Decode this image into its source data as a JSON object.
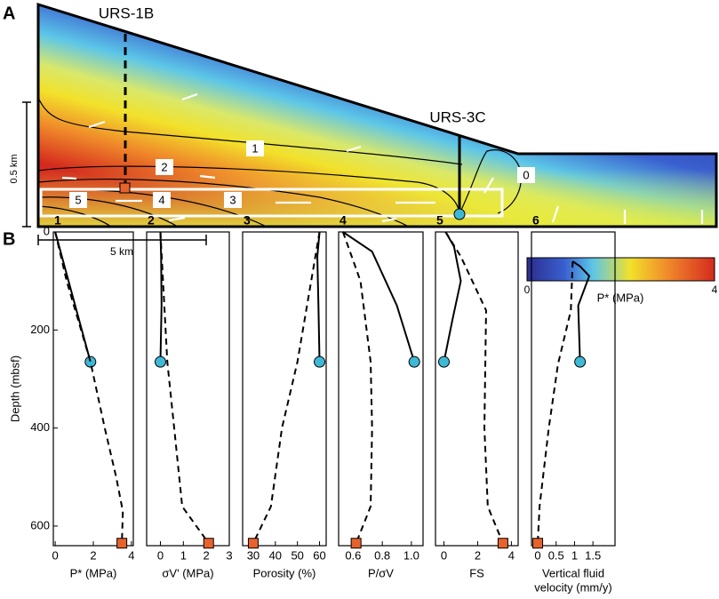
{
  "panel_a": {
    "label": "A",
    "wells": [
      "URS-1B",
      "URS-3C"
    ],
    "zones": [
      "0",
      "1",
      "2",
      "3",
      "4",
      "5"
    ],
    "vertical_scale": "0.5 km",
    "horizontal_scale": "5 km",
    "colorbar": {
      "ticks": [
        0,
        4
      ],
      "label": "P* (MPa)"
    }
  },
  "panel_b": {
    "label": "B"
  },
  "chart_data": [
    {
      "type": "line",
      "title": "1",
      "x_label": "P* (MPa)",
      "y_label": "Depth (mbsf)",
      "xlim": [
        -0.1,
        4.1
      ],
      "xticks": [
        0,
        2,
        4
      ],
      "ylim": [
        0,
        640
      ],
      "yticks": [
        0,
        200,
        400,
        600
      ],
      "series": [
        {
          "style": "solid",
          "color": "#000000",
          "depths": [
            0,
            265
          ],
          "values": [
            0,
            1.85
          ]
        },
        {
          "style": "dashed",
          "color": "#000000",
          "depths": [
            0,
            100,
            265,
            400,
            500,
            570,
            635
          ],
          "values": [
            0,
            0.6,
            1.85,
            2.6,
            3.2,
            3.55,
            3.5
          ]
        }
      ]
    },
    {
      "type": "line",
      "title": "2",
      "x_label": "σV' (MPa)",
      "xlim": [
        -0.6,
        3
      ],
      "xticks": [
        0,
        1,
        2,
        3
      ],
      "ylim": [
        0,
        640
      ],
      "series": [
        {
          "style": "solid",
          "color": "#000000",
          "depths": [
            0,
            50,
            150,
            265
          ],
          "values": [
            0,
            0.03,
            0.05,
            0
          ]
        },
        {
          "style": "dashed",
          "color": "#000000",
          "depths": [
            0,
            265,
            400,
            560,
            635
          ],
          "values": [
            0,
            0.3,
            0.6,
            0.95,
            2.1
          ]
        }
      ]
    },
    {
      "type": "line",
      "title": "3",
      "x_label": "Porosity (%)",
      "xlim": [
        25.2,
        63
      ],
      "xticks": [
        30,
        40,
        50,
        60
      ],
      "ylim": [
        0,
        640
      ],
      "series": [
        {
          "style": "solid",
          "color": "#000000",
          "depths": [
            0,
            50,
            150,
            265
          ],
          "values": [
            60,
            59,
            59.5,
            60
          ]
        },
        {
          "style": "dashed",
          "color": "#000000",
          "depths": [
            0,
            265,
            400,
            560,
            635
          ],
          "values": [
            60,
            50,
            43,
            38,
            30
          ]
        }
      ]
    },
    {
      "type": "line",
      "title": "4",
      "x_label": "P/σV",
      "xlim": [
        0.5,
        1.08
      ],
      "xticks": [
        0.6,
        0.8,
        {
          "value": 1,
          "label": "1.0"
        }
      ],
      "ylim": [
        0,
        640
      ],
      "series": [
        {
          "style": "solid",
          "color": "#000000",
          "depths": [
            0,
            40,
            150,
            265
          ],
          "values": [
            0.53,
            0.73,
            0.9,
            1.02
          ]
        },
        {
          "style": "dashed",
          "color": "#000000",
          "depths": [
            0,
            100,
            265,
            400,
            560,
            635
          ],
          "values": [
            0.53,
            0.65,
            0.72,
            0.73,
            0.72,
            0.62
          ]
        }
      ]
    },
    {
      "type": "line",
      "title": "5",
      "x_label": "FS",
      "xlim": [
        -0.5,
        4.4
      ],
      "xticks": [
        0,
        2,
        4
      ],
      "ylim": [
        0,
        640
      ],
      "series": [
        {
          "style": "solid",
          "color": "#000000",
          "depths": [
            0,
            30,
            100,
            180,
            265
          ],
          "values": [
            0.1,
            0.6,
            1,
            0.5,
            0
          ]
        },
        {
          "style": "dashed",
          "color": "#000000",
          "depths": [
            0,
            50,
            160,
            400,
            560,
            635
          ],
          "values": [
            0.1,
            1,
            2.5,
            2.4,
            2.6,
            3.5
          ]
        }
      ]
    },
    {
      "type": "line",
      "title": "6",
      "x_label": [
        "Vertical fluid",
        "velocity (mm/y)"
      ],
      "xlim": [
        -0.17,
        2.1
      ],
      "xticks": [
        0,
        0.5,
        1,
        1.5
      ],
      "ylim": [
        0,
        640
      ],
      "series": [
        {
          "style": "solid",
          "color": "#000000",
          "depths": [
            60,
            70,
            90,
            150,
            265
          ],
          "values": [
            0.95,
            1.15,
            1.4,
            1.1,
            1.15
          ]
        },
        {
          "style": "dashed",
          "color": "#000000",
          "depths": [
            60,
            160,
            270,
            400,
            560,
            635
          ],
          "values": [
            0.95,
            0.9,
            0.55,
            0.3,
            0.05,
            0
          ]
        }
      ]
    }
  ]
}
